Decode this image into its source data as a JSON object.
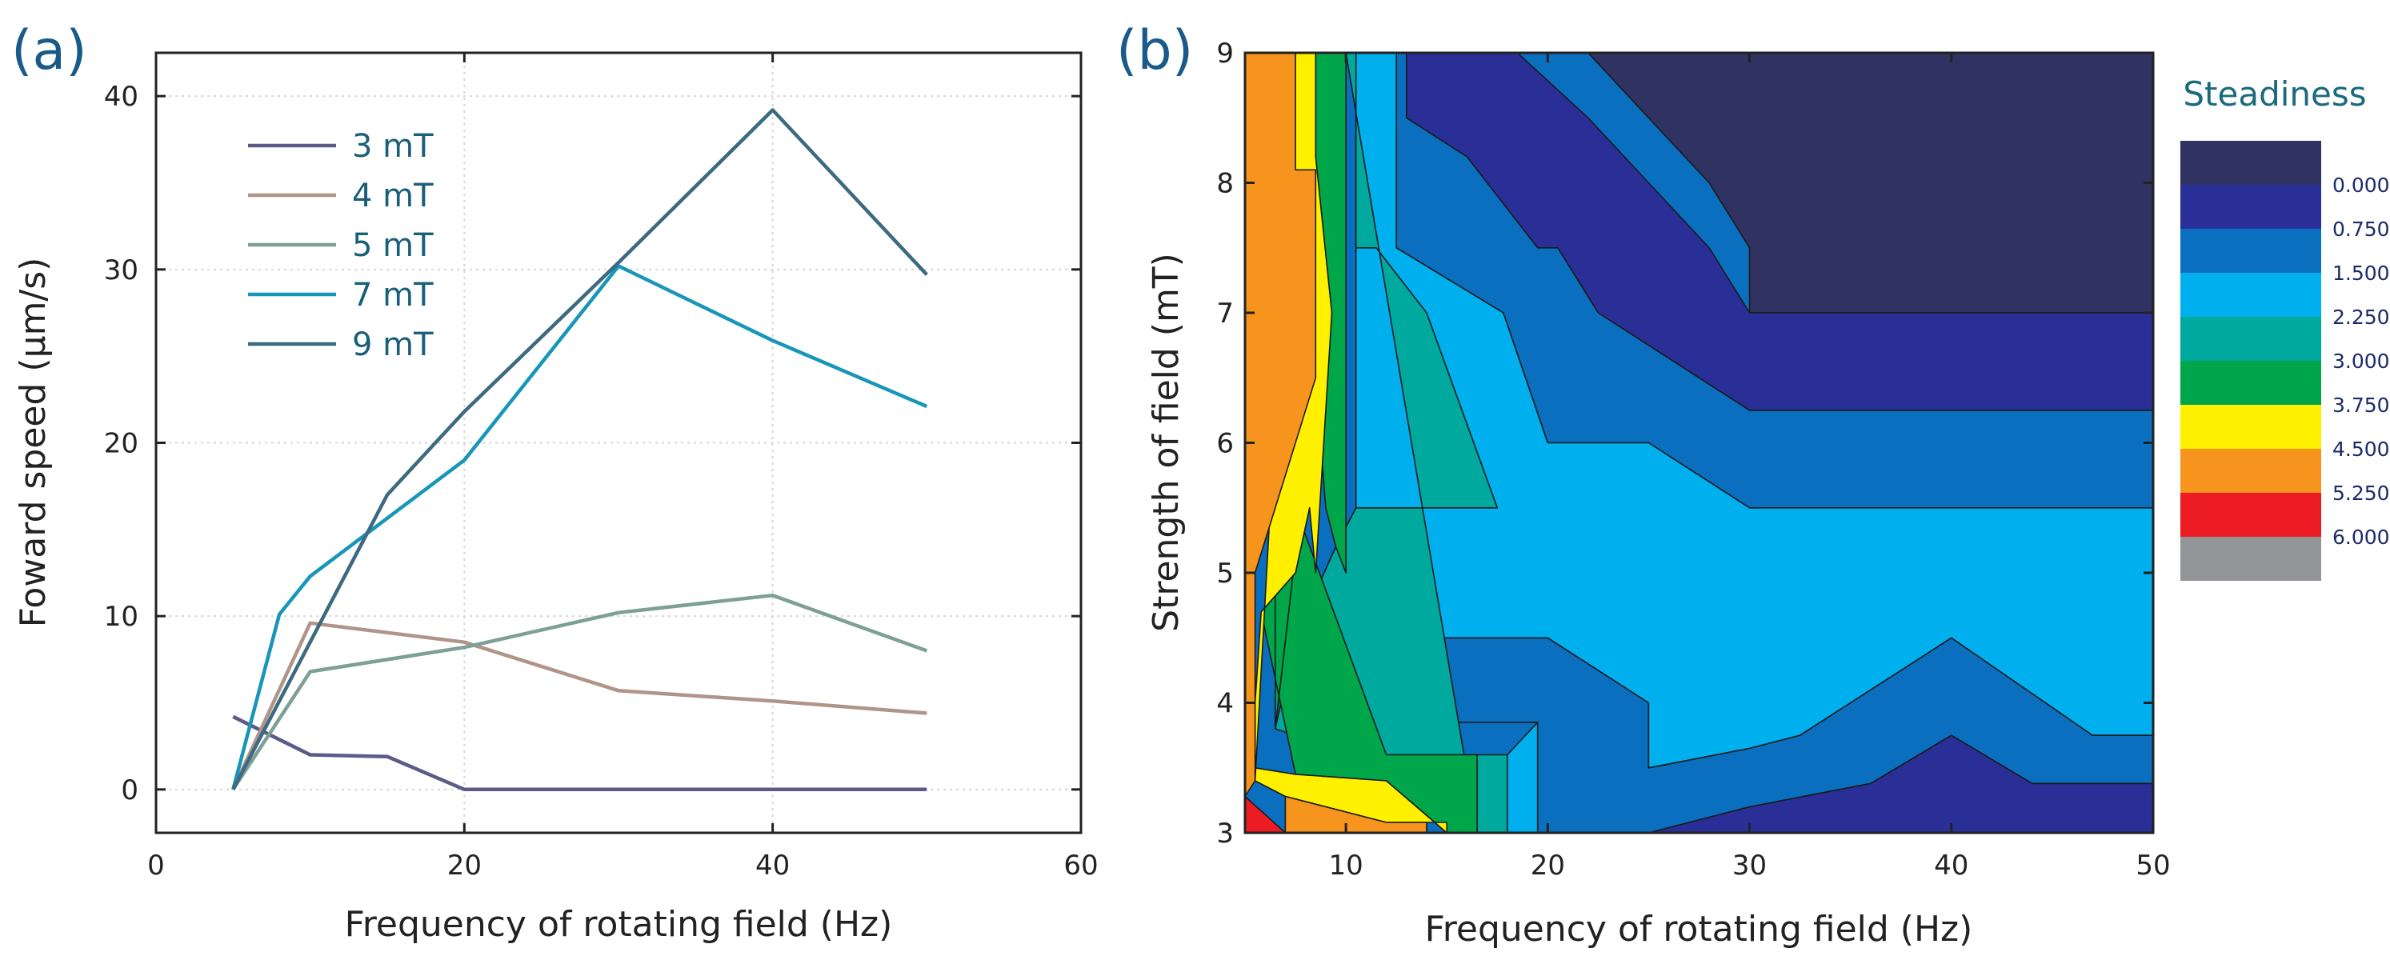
{
  "chart_data": [
    {
      "panel": "(a)",
      "type": "line",
      "xlabel": "Frequency of rotating field (Hz)",
      "ylabel": "Foward speed (µm/s)",
      "xlim": [
        0,
        60
      ],
      "ylim": [
        -2.5,
        42.5
      ],
      "xticks": [
        0,
        20,
        40,
        60
      ],
      "yticks": [
        0,
        10,
        20,
        30,
        40
      ],
      "grid": true,
      "legend_position": "top-left",
      "series": [
        {
          "name": "3 mT",
          "color": "#5b5a88",
          "x": [
            5,
            10,
            15,
            20,
            30,
            40,
            50
          ],
          "y": [
            4.2,
            2.0,
            1.9,
            0,
            0,
            0,
            0
          ]
        },
        {
          "name": "4 mT",
          "color": "#b09488",
          "x": [
            5,
            10,
            20,
            30,
            40,
            50
          ],
          "y": [
            0,
            9.6,
            8.5,
            5.7,
            5.1,
            4.4
          ]
        },
        {
          "name": "5 mT",
          "color": "#7e9f95",
          "x": [
            5,
            10,
            20,
            30,
            40,
            50
          ],
          "y": [
            0,
            6.8,
            8.2,
            10.2,
            11.2,
            8.0
          ]
        },
        {
          "name": "7 mT",
          "color": "#1896b8",
          "x": [
            5,
            8,
            10,
            20,
            30,
            40,
            50
          ],
          "y": [
            0,
            10.1,
            12.3,
            19.0,
            30.2,
            25.9,
            22.1
          ]
        },
        {
          "name": "9 mT",
          "color": "#3d6a80",
          "x": [
            5,
            15,
            20,
            30,
            40,
            50
          ],
          "y": [
            0,
            17.0,
            21.8,
            30.4,
            39.2,
            29.7
          ]
        }
      ]
    },
    {
      "panel": "(b)",
      "type": "contour",
      "xlabel": "Frequency of rotating field (Hz)",
      "ylabel": "Strength of field (mT)",
      "xlim": [
        5,
        50
      ],
      "ylim": [
        3,
        9
      ],
      "xticks": [
        10,
        20,
        30,
        40,
        50
      ],
      "yticks": [
        3,
        4,
        5,
        6,
        7,
        8,
        9
      ],
      "colorbar": {
        "title": "Steadiness",
        "labels": [
          "0.000",
          "0.750",
          "1.500",
          "2.250",
          "3.000",
          "3.750",
          "4.500",
          "5.250",
          "6.000"
        ],
        "colors": [
          "#303262",
          "#2a2f98",
          "#0b6fc0",
          "#00b0ee",
          "#00a99d",
          "#00a64a",
          "#fff000",
          "#f7941d",
          "#ed1c24",
          "#939598"
        ]
      },
      "regions": [
        {
          "level": "0.000",
          "color": "#303262",
          "x": [
            18.5,
            50,
            50,
            30,
            30,
            28,
            25,
            22
          ],
          "y": [
            9,
            9,
            7,
            7,
            7.5,
            8,
            8.5,
            9
          ]
        },
        {
          "level": "0.750",
          "color": "#2a2f98",
          "x": [
            13,
            18.5,
            22,
            25,
            28,
            30,
            30,
            50,
            50,
            30,
            22.5,
            20.5,
            19.5,
            16,
            13
          ],
          "y": [
            9,
            9,
            8.5,
            8,
            7.5,
            7,
            7,
            7,
            6.25,
            6.25,
            7,
            7.5,
            7.5,
            8.2,
            8.5
          ]
        },
        {
          "level": "0.750",
          "color": "#2a2f98",
          "x": [
            25,
            30,
            36,
            40,
            44,
            50,
            50,
            25
          ],
          "y": [
            3,
            3.2,
            3.38,
            3.75,
            3.38,
            3.38,
            3,
            3
          ]
        },
        {
          "level": "1.500",
          "color": "#0b6fc0",
          "x": [
            12.5,
            13,
            13,
            16,
            19.5,
            20.5,
            22.5,
            30,
            50,
            50,
            30,
            25,
            20,
            17.8,
            12.5
          ],
          "y": [
            9,
            9,
            8.5,
            8.2,
            7.5,
            7.5,
            7,
            6.25,
            6.25,
            5.5,
            5.5,
            6.0,
            6.0,
            7.0,
            7.5
          ]
        },
        {
          "level": "1.500",
          "color": "#0b6fc0",
          "x": [
            7,
            8,
            10,
            20,
            25,
            25,
            30,
            32.5,
            40,
            47,
            50,
            50,
            44,
            40,
            36,
            30,
            25,
            19.5,
            19.5,
            12,
            10,
            7.5
          ],
          "y": [
            4.05,
            4.4,
            4.5,
            4.5,
            4.0,
            3.5,
            3.65,
            3.75,
            4.5,
            3.75,
            3.75,
            3.38,
            3.38,
            3.75,
            3.38,
            3.2,
            3,
            3,
            3.85,
            3.85,
            3.85,
            3.85
          ]
        },
        {
          "level": "2.250",
          "color": "#00b0ee",
          "x": [
            10.5,
            12.5,
            12.5,
            17.8,
            20,
            25,
            30,
            50,
            50,
            47,
            40,
            32.5,
            30,
            25,
            25,
            20,
            10,
            8,
            7,
            7.5,
            8.2,
            9.5,
            10.5
          ],
          "y": [
            9,
            9,
            7.5,
            7.0,
            6.0,
            6.0,
            5.5,
            5.5,
            3.75,
            3.75,
            4.5,
            3.75,
            3.65,
            3.5,
            4.0,
            4.5,
            4.5,
            4.4,
            4.05,
            4.5,
            4.75,
            5.2,
            5.5
          ]
        },
        {
          "level": "2.250",
          "color": "#00b0ee",
          "x": [
            16.5,
            19.5,
            19.5,
            18,
            16.5
          ],
          "y": [
            3,
            3,
            3.85,
            3.6,
            3.2
          ]
        },
        {
          "level": "3.000",
          "color": "#00a99d",
          "x": [
            10,
            10.5,
            10.5,
            11.5,
            14,
            17.5,
            10.5,
            9.5,
            8.2,
            7.5,
            6.5,
            7.5,
            10,
            12,
            18,
            18,
            16.5
          ],
          "y": [
            9,
            9,
            7.5,
            7.5,
            7,
            5.5,
            5.5,
            5.2,
            4.75,
            4.5,
            3.8,
            3.75,
            3.75,
            3.6,
            3.6,
            3,
            3
          ]
        },
        {
          "level": "3.750",
          "color": "#00a64a",
          "x": [
            8.5,
            10,
            10,
            9.5,
            9,
            8.5,
            6.5,
            6.5,
            7.5,
            12,
            16.5,
            16.5,
            15,
            12,
            7.5,
            5.8,
            7.5,
            8.2,
            8.5
          ],
          "y": [
            9,
            9,
            5,
            5.2,
            5.5,
            6.5,
            3.8,
            5.0,
            5.5,
            3.6,
            3.6,
            3,
            3,
            3.4,
            3.45,
            4.7,
            5.0,
            5.5,
            7.0
          ]
        },
        {
          "level": "4.500",
          "color": "#fff000",
          "x": [
            7.5,
            8.5,
            8.5,
            9.3,
            8.5,
            8.2,
            7.5,
            5.8,
            5.5,
            5.5,
            7.5,
            12,
            15,
            15,
            12,
            7,
            5.5
          ],
          "y": [
            9,
            9,
            8.2,
            7.0,
            5.0,
            5.5,
            5.0,
            4.7,
            4.0,
            3.5,
            3.45,
            3.4,
            3,
            3.08,
            3.08,
            3.28,
            3.4
          ]
        },
        {
          "level": "5.250",
          "color": "#f7941d",
          "x": [
            5,
            7.5,
            7.5,
            8.5,
            8.5,
            5.5,
            5.5,
            5,
            5
          ],
          "y": [
            9,
            9,
            8.1,
            8.1,
            6.5,
            5.0,
            3.4,
            3.28,
            3
          ]
        },
        {
          "level": "5.250",
          "color": "#f7941d",
          "x": [
            7,
            12,
            14,
            14,
            7
          ],
          "y": [
            3.28,
            3.08,
            3.08,
            3,
            3
          ]
        },
        {
          "level": "6.000",
          "color": "#ed1c24",
          "x": [
            5,
            7,
            5
          ],
          "y": [
            3,
            3,
            3.28
          ]
        }
      ]
    }
  ]
}
